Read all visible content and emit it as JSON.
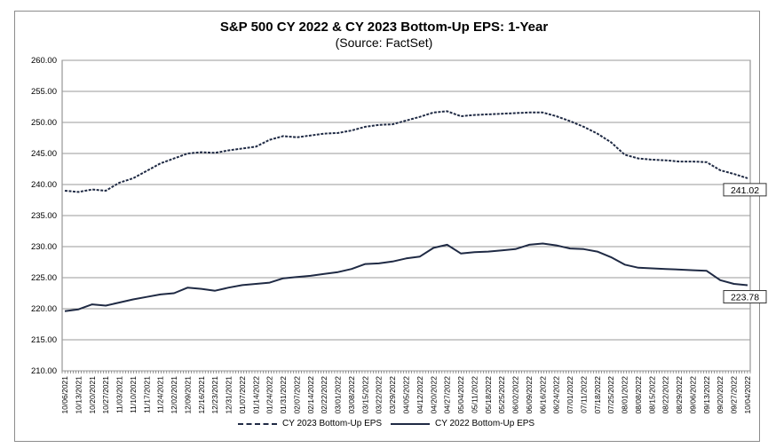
{
  "chart_data": {
    "type": "line",
    "title": "S&P 500 CY 2022 & CY 2023 Bottom-Up  EPS: 1-Year",
    "subtitle": "(Source:  FactSet)",
    "ylim": [
      210,
      260
    ],
    "y_ticks": [
      "210.00",
      "215.00",
      "220.00",
      "225.00",
      "230.00",
      "235.00",
      "240.00",
      "245.00",
      "250.00",
      "255.00",
      "260.00"
    ],
    "x_tick_labels": [
      "10/06/2021",
      "10/13/2021",
      "10/20/2021",
      "10/27/2021",
      "11/03/2021",
      "11/10/2021",
      "11/17/2021",
      "11/24/2021",
      "12/02/2021",
      "12/09/2021",
      "12/16/2021",
      "12/23/2021",
      "12/31/2021",
      "01/07/2022",
      "01/14/2022",
      "01/24/2022",
      "01/31/2022",
      "02/07/2022",
      "02/14/2022",
      "02/22/2022",
      "03/01/2022",
      "03/08/2022",
      "03/15/2022",
      "03/22/2022",
      "03/29/2022",
      "04/05/2022",
      "04/12/2022",
      "04/20/2022",
      "04/27/2022",
      "05/04/2022",
      "05/11/2022",
      "05/18/2022",
      "05/25/2022",
      "06/02/2022",
      "06/09/2022",
      "06/16/2022",
      "06/24/2022",
      "07/01/2022",
      "07/11/2022",
      "07/18/2022",
      "07/25/2022",
      "08/01/2022",
      "08/08/2022",
      "08/15/2022",
      "08/22/2022",
      "08/29/2022",
      "09/06/2022",
      "09/13/2022",
      "09/20/2022",
      "09/27/2022",
      "10/04/2022"
    ],
    "grid": "horizontal",
    "legend": "bottom",
    "series": [
      {
        "name": "CY 2023 Bottom-Up EPS",
        "style": "dashed",
        "color": "#1f2a44",
        "end_label": "241.02",
        "x": [
          "10/06/2021",
          "10/13/2021",
          "10/20/2021",
          "10/27/2021",
          "11/03/2021",
          "11/10/2021",
          "11/17/2021",
          "11/24/2021",
          "12/02/2021",
          "12/09/2021",
          "12/16/2021",
          "12/23/2021",
          "12/31/2021",
          "01/07/2022",
          "01/14/2022",
          "01/24/2022",
          "01/31/2022",
          "02/07/2022",
          "02/14/2022",
          "02/22/2022",
          "03/01/2022",
          "03/08/2022",
          "03/15/2022",
          "03/22/2022",
          "03/29/2022",
          "04/05/2022",
          "04/12/2022",
          "04/20/2022",
          "04/27/2022",
          "05/04/2022",
          "05/11/2022",
          "05/18/2022",
          "05/25/2022",
          "06/02/2022",
          "06/09/2022",
          "06/16/2022",
          "06/24/2022",
          "07/01/2022",
          "07/11/2022",
          "07/18/2022",
          "07/25/2022",
          "08/01/2022",
          "08/08/2022",
          "08/15/2022",
          "08/22/2022",
          "08/29/2022",
          "09/06/2022",
          "09/13/2022",
          "09/20/2022",
          "09/27/2022",
          "10/04/2022"
        ],
        "values": [
          239.0,
          238.8,
          239.2,
          239.0,
          240.3,
          241.0,
          242.2,
          243.4,
          244.2,
          245.0,
          245.2,
          245.1,
          245.5,
          245.8,
          246.1,
          247.2,
          247.8,
          247.6,
          247.9,
          248.2,
          248.3,
          248.7,
          249.3,
          249.6,
          249.7,
          250.3,
          250.9,
          251.6,
          251.8,
          251.0,
          251.2,
          251.3,
          251.4,
          251.5,
          251.6,
          251.6,
          251.0,
          250.2,
          249.3,
          248.2,
          246.8,
          244.8,
          244.2,
          244.0,
          243.9,
          243.7,
          243.7,
          243.6,
          242.3,
          241.7,
          241.02
        ]
      },
      {
        "name": "CY 2022 Bottom-Up EPS",
        "style": "solid",
        "color": "#1f2a44",
        "end_label": "223.78",
        "x": [
          "10/06/2021",
          "10/13/2021",
          "10/20/2021",
          "10/27/2021",
          "11/03/2021",
          "11/10/2021",
          "11/17/2021",
          "11/24/2021",
          "12/02/2021",
          "12/09/2021",
          "12/16/2021",
          "12/23/2021",
          "12/31/2021",
          "01/07/2022",
          "01/14/2022",
          "01/24/2022",
          "01/31/2022",
          "02/07/2022",
          "02/14/2022",
          "02/22/2022",
          "03/01/2022",
          "03/08/2022",
          "03/15/2022",
          "03/22/2022",
          "03/29/2022",
          "04/05/2022",
          "04/12/2022",
          "04/20/2022",
          "04/27/2022",
          "05/04/2022",
          "05/11/2022",
          "05/18/2022",
          "05/25/2022",
          "06/02/2022",
          "06/09/2022",
          "06/16/2022",
          "06/24/2022",
          "07/01/2022",
          "07/11/2022",
          "07/18/2022",
          "07/25/2022",
          "08/01/2022",
          "08/08/2022",
          "08/15/2022",
          "08/22/2022",
          "08/29/2022",
          "09/06/2022",
          "09/13/2022",
          "09/20/2022",
          "09/27/2022",
          "10/04/2022"
        ],
        "values": [
          219.6,
          219.9,
          220.7,
          220.5,
          221.0,
          221.5,
          221.9,
          222.3,
          222.5,
          223.4,
          223.2,
          222.9,
          223.4,
          223.8,
          224.0,
          224.2,
          224.9,
          225.1,
          225.3,
          225.6,
          225.9,
          226.4,
          227.2,
          227.3,
          227.6,
          228.1,
          228.4,
          229.8,
          230.3,
          228.9,
          229.1,
          229.2,
          229.4,
          229.6,
          230.3,
          230.5,
          230.2,
          229.7,
          229.6,
          229.2,
          228.3,
          227.1,
          226.6,
          226.5,
          226.4,
          226.3,
          226.2,
          226.1,
          224.6,
          224.0,
          223.78
        ]
      }
    ]
  }
}
